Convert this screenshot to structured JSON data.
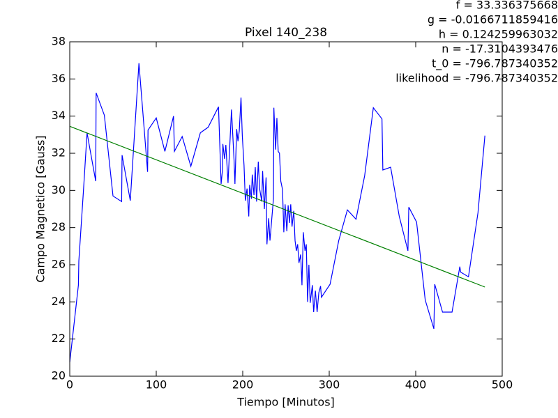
{
  "chart_data": {
    "type": "line",
    "title": "Pixel 140_238",
    "xlabel": "Tiempo [Minutos]",
    "ylabel": "Campo Magnetico [Gauss]",
    "annotations": [
      "f = 33.336375668",
      "g = -0.0166711859416",
      "h = 0.124259963032",
      "n = -17.3104393476",
      "t_0 = -796.787340352",
      "likelihood = -796.787340352"
    ],
    "xlim": [
      0,
      500
    ],
    "ylim": [
      20,
      38
    ],
    "xticks": [
      0,
      100,
      200,
      300,
      400,
      500
    ],
    "yticks": [
      20,
      22,
      24,
      26,
      28,
      30,
      32,
      34,
      36,
      38
    ],
    "grid": false,
    "series": [
      {
        "color": "#0000ff",
        "x": [
          0,
          10,
          10.5,
          16,
          20,
          30,
          30.5,
          40,
          50,
          60,
          60.5,
          70,
          80,
          90,
          90.5,
          100,
          110,
          120,
          121,
          130,
          140,
          151,
          160,
          172,
          175,
          176.5,
          177,
          179,
          180.5,
          183,
          187,
          190,
          191,
          193,
          194.5,
          196,
          198,
          199.5,
          201.5,
          203,
          205,
          207,
          208,
          210,
          211,
          213,
          214.5,
          216,
          218,
          219.5,
          222,
          223,
          225,
          227,
          228,
          230,
          231.5,
          235.5,
          236,
          238,
          239.5,
          241,
          242.5,
          244,
          246,
          247.5,
          249,
          251,
          252.5,
          254,
          255.5,
          257,
          259,
          260.5,
          262,
          263.5,
          265,
          267,
          268.5,
          270,
          272,
          273.5,
          275,
          276.5,
          278,
          280.5,
          282,
          284,
          286,
          288,
          290,
          291,
          301,
          311,
          321,
          331,
          341,
          351,
          361,
          362,
          371,
          381,
          391,
          392,
          401,
          411,
          421,
          422,
          431,
          442,
          451,
          452,
          461,
          472,
          480
        ],
        "values": [
          20.75,
          24.9,
          26.2,
          30.1,
          33.1,
          30.5,
          35.25,
          34.05,
          29.7,
          29.4,
          31.9,
          29.45,
          36.85,
          31,
          33.25,
          33.9,
          32.1,
          34,
          32.1,
          32.9,
          31.3,
          33.1,
          33.4,
          34.5,
          30.35,
          31.05,
          32.5,
          31.7,
          32.45,
          30.4,
          34.35,
          31.6,
          30.35,
          33.3,
          32.65,
          33.2,
          35,
          32.95,
          31.35,
          29.45,
          30.1,
          28.6,
          30.3,
          29.55,
          30.85,
          29.75,
          31.25,
          29.4,
          31.55,
          30.1,
          29.4,
          31.05,
          29,
          30.7,
          27.1,
          28.5,
          27.3,
          29.55,
          34.45,
          32.2,
          33.9,
          32.1,
          32,
          30.5,
          30.05,
          27.75,
          29.25,
          27.8,
          29.2,
          28.25,
          29.25,
          28.05,
          28.9,
          27.3,
          26.75,
          27.1,
          26.1,
          26.55,
          24.9,
          27.75,
          26.75,
          27.1,
          24,
          26,
          23.95,
          24.9,
          23.45,
          24.6,
          23.45,
          24.5,
          24.85,
          24.25,
          24.95,
          27.3,
          28.95,
          28.45,
          30.8,
          34.45,
          33.85,
          31.1,
          31.25,
          28.6,
          26.75,
          29.1,
          28.3,
          24.1,
          22.55,
          24.95,
          23.45,
          23.45,
          25.9,
          25.6,
          25.35,
          28.8,
          32.95
        ]
      },
      {
        "color": "#008000",
        "x": [
          0,
          480
        ],
        "values": [
          33.45,
          24.8
        ]
      }
    ]
  }
}
